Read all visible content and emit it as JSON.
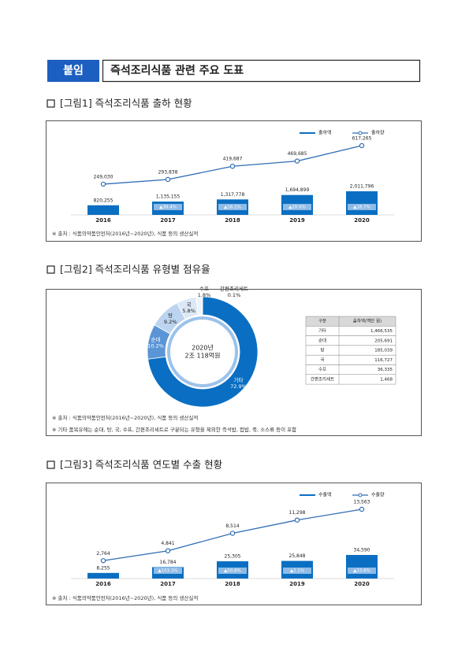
{
  "header": {
    "tag": "붙임",
    "title": "즉석조리식품 관련 주요 도표"
  },
  "figures": [
    {
      "title": "[그림1] 즉석조리식품 출하 현황",
      "notes": [
        "※ 출처 : 식품의약품안전처(2016년~2020년), 식품 등의 생산실적"
      ]
    },
    {
      "title": "[그림2] 즉석조리식품 유형별 점유율",
      "notes": [
        "※ 출처 : 식품의약품안전처(2016년~2020년), 식품 등의 생산실적",
        "※ 기타 품목유에는 순대, 탕, 국, 수프, 간편조리세트로 구분되는 유형을 제외한 즉석밥, 컵밥, 죽, 소스류 등이 포함"
      ],
      "table": {
        "header": [
          "구분",
          "출하액(백만 원)"
        ],
        "rows": [
          [
            "기타",
            "1,466,535"
          ],
          [
            "순대",
            "205,691"
          ],
          [
            "탕",
            "185,039"
          ],
          [
            "국",
            "116,727"
          ],
          [
            "수프",
            "36,335"
          ],
          [
            "간편조리세트",
            "1,468"
          ]
        ]
      }
    },
    {
      "title": "[그림3] 즉석조리식품 연도별 수출 현황",
      "notes": [
        "※ 출처 : 식품의약품안전처(2016년~2020년), 식품 등의 생산실적"
      ]
    }
  ],
  "chart_data": [
    {
      "type": "combo",
      "categories": [
        "2016",
        "2017",
        "2018",
        "2019",
        "2020"
      ],
      "series": [
        {
          "name": "출하액",
          "color": "#0a6fc2",
          "values": [
            820255,
            1135155,
            1317778,
            1694899,
            2011796
          ],
          "value_labels": [
            "820,255",
            "1,135,155",
            "1,317,778",
            "1,694,899",
            "2,011,796"
          ],
          "growth_labels": [
            null,
            "▲38.4%",
            "▲16.1%",
            "▲28.6%",
            "▲18.7%"
          ]
        },
        {
          "name": "출하량",
          "color": "#2f6db5",
          "values": [
            249030,
            293838,
            419687,
            469685,
            617265
          ],
          "value_labels": [
            "249,030",
            "293,838",
            "419,687",
            "469,685",
            "617,265"
          ]
        }
      ]
    },
    {
      "type": "pie",
      "categories": [
        "기타",
        "순대",
        "탕",
        "국",
        "수프",
        "간편조리세트"
      ],
      "values": [
        72.9,
        10.2,
        9.2,
        5.8,
        1.8,
        0.1
      ],
      "value_labels": [
        "72.9%",
        "10.2%",
        "9.2%",
        "5.8%",
        "1.8%",
        "0.1%"
      ],
      "colors": [
        "#0a6fc2",
        "#5b95d6",
        "#bcd4ef",
        "#dce8f6",
        "#eef4fb",
        "#f7f9fc"
      ],
      "center_label": [
        "2020년",
        "2조 118억원"
      ]
    },
    {
      "type": "combo",
      "categories": [
        "2016",
        "2017",
        "2018",
        "2019",
        "2020"
      ],
      "series": [
        {
          "name": "수출액",
          "color": "#0a6fc2",
          "values": [
            8255,
            16784,
            25305,
            25848,
            34590
          ],
          "value_labels": [
            "8,255",
            "16,784",
            "25,305",
            "25,848",
            "34,590"
          ],
          "growth_labels": [
            null,
            "▲103.3%",
            "▲50.8%",
            "▲2.1%",
            "▲33.8%"
          ]
        },
        {
          "name": "수출량",
          "color": "#2f6db5",
          "values": [
            2764,
            4841,
            8514,
            11298,
            13563
          ],
          "value_labels": [
            "2,764",
            "4,841",
            "8,514",
            "11,298",
            "13,563"
          ]
        }
      ]
    }
  ]
}
